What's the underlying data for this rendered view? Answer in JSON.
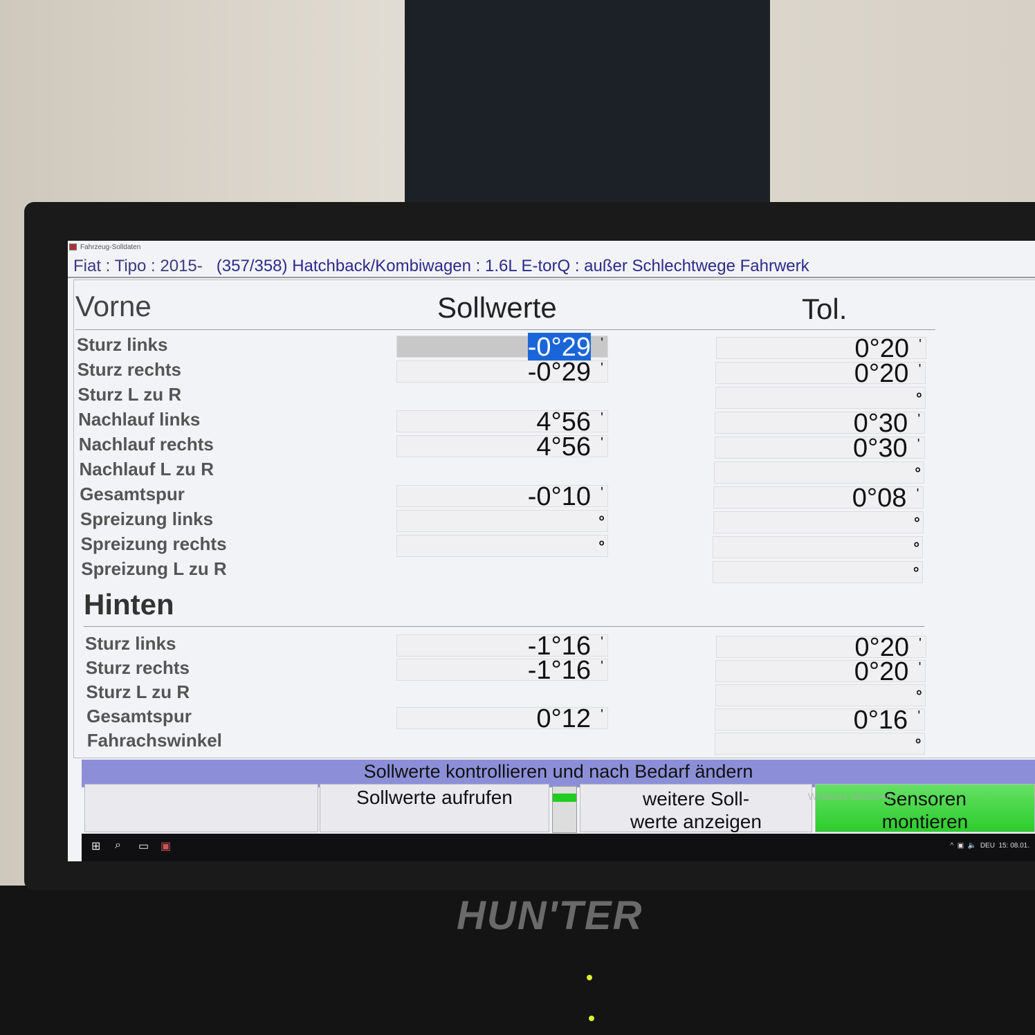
{
  "window": {
    "title": "Fahrzeug-Solldaten",
    "vehicle_make": "Fiat : Tipo : 2015-",
    "vehicle_detail": "(357/358) Hatchback/Kombiwagen : 1.6L E-torQ : außer Schlechtwege Fahrwerk"
  },
  "columns": {
    "front": "Vorne",
    "nominal": "Sollwerte",
    "tolerance": "Tol.",
    "rear": "Hinten"
  },
  "front_rows": [
    {
      "label": "Sturz links",
      "soll": "-0°29",
      "soll_unit": "'",
      "tol": "0°20",
      "tol_unit": "'",
      "selected": true
    },
    {
      "label": "Sturz rechts",
      "soll": "-0°29",
      "soll_unit": "'",
      "tol": "0°20",
      "tol_unit": "'"
    },
    {
      "label": "Sturz  L zu R",
      "soll": null,
      "tol": "",
      "tol_unit": "°"
    },
    {
      "label": "Nachlauf links",
      "soll": "4°56",
      "soll_unit": "'",
      "tol": "0°30",
      "tol_unit": "'"
    },
    {
      "label": "Nachlauf rechts",
      "soll": "4°56",
      "soll_unit": "'",
      "tol": "0°30",
      "tol_unit": "'"
    },
    {
      "label": "Nachlauf  L zu R",
      "soll": null,
      "tol": "",
      "tol_unit": "°"
    },
    {
      "label": "Gesamtspur",
      "soll": "-0°10",
      "soll_unit": "'",
      "tol": "0°08",
      "tol_unit": "'"
    },
    {
      "label": "Spreizung links",
      "soll": "",
      "soll_unit": "°",
      "tol": "",
      "tol_unit": "°"
    },
    {
      "label": "Spreizung rechts",
      "soll": "",
      "soll_unit": "°",
      "tol": "",
      "tol_unit": "°"
    },
    {
      "label": "Spreizung L zu R",
      "soll": null,
      "tol": "",
      "tol_unit": "°"
    }
  ],
  "rear_rows": [
    {
      "label": "Sturz links",
      "soll": "-1°16",
      "soll_unit": "'",
      "tol": "0°20",
      "tol_unit": "'"
    },
    {
      "label": "Sturz rechts",
      "soll": "-1°16",
      "soll_unit": "'",
      "tol": "0°20",
      "tol_unit": "'"
    },
    {
      "label": "Sturz  L zu R",
      "soll": null,
      "tol": "",
      "tol_unit": "°"
    },
    {
      "label": "Gesamtspur",
      "soll": "0°12",
      "soll_unit": "'",
      "tol": "0°16",
      "tol_unit": "'"
    },
    {
      "label": "Fahrachswinkel",
      "soll": null,
      "tol": "",
      "tol_unit": "°"
    }
  ],
  "status": "Sollwerte kontrollieren und nach Bedarf ändern",
  "buttons": {
    "b1": "",
    "b2": "Sollwerte aufrufen",
    "b3": "weitere Soll- werte anzeigen",
    "b4": "Sensoren montieren"
  },
  "watermark": "Windows aktivieren",
  "taskbar": {
    "language": "DEU",
    "time": "15:",
    "date": "08.01."
  },
  "brand_logo": "HUNTER",
  "colors": {
    "header_text": "#2c2a8a",
    "status_bar": "#8c8fd8",
    "primary_button": "#2ccc2c",
    "selection": "#1a66d8"
  }
}
